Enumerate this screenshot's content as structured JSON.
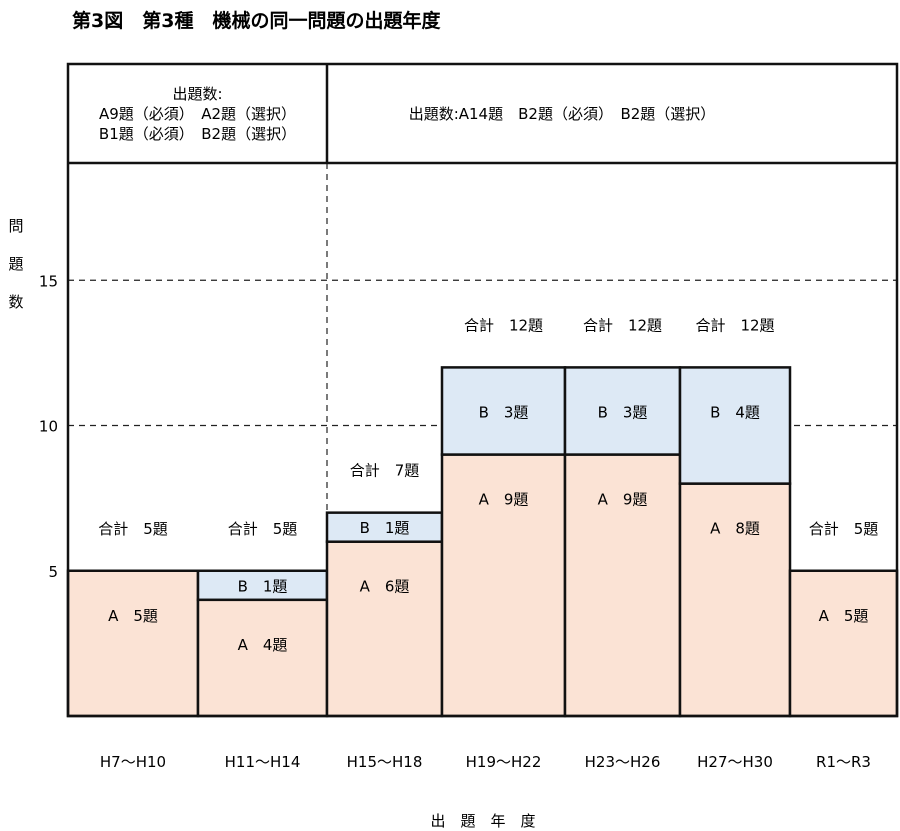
{
  "title": "第3図　第3種　機械の同一問題の出題年度",
  "chart_data": {
    "type": "bar",
    "stacked": true,
    "title": "第3図　第3種　機械の同一問題の出題年度",
    "ylabel": "問題数",
    "xlabel": "出　題　年　度",
    "ylim": [
      0,
      19
    ],
    "yticks": [
      "5",
      "10",
      "15"
    ],
    "grid": "dashed horizontal at y-ticks",
    "categories": [
      "H7〜H10",
      "H11〜H14",
      "H15〜H18",
      "H19〜H22",
      "H23〜H26",
      "H27〜H30",
      "R1〜R3"
    ],
    "series": [
      {
        "name": "A",
        "color": "#fbe3d5",
        "values": [
          5,
          4,
          6,
          9,
          9,
          8,
          5
        ],
        "labels": [
          "A　5題",
          "A　4題",
          "A　6題",
          "A　9題",
          "A　9題",
          "A　8題",
          "A　5題"
        ]
      },
      {
        "name": "B",
        "color": "#dde9f5",
        "values": [
          0,
          1,
          1,
          3,
          3,
          4,
          0
        ],
        "labels": [
          "",
          "B　1題",
          "B　1題",
          "B　3題",
          "B　3題",
          "B　4題",
          ""
        ]
      }
    ],
    "totals": [
      5,
      5,
      7,
      12,
      12,
      12,
      5
    ],
    "total_labels": [
      "合計　5題",
      "合計　5題",
      "合計　7題",
      "合計　12題",
      "合計　12題",
      "合計　12題",
      "合計　5題"
    ],
    "header_panels": [
      {
        "lines": [
          "出題数:",
          "A9題（必須）　A2題（選択）",
          "B1題（必須）　B2題（選択）"
        ]
      },
      {
        "lines": [
          "出題数:A14題　B2題（必須）　B2題（選択）"
        ]
      }
    ]
  }
}
